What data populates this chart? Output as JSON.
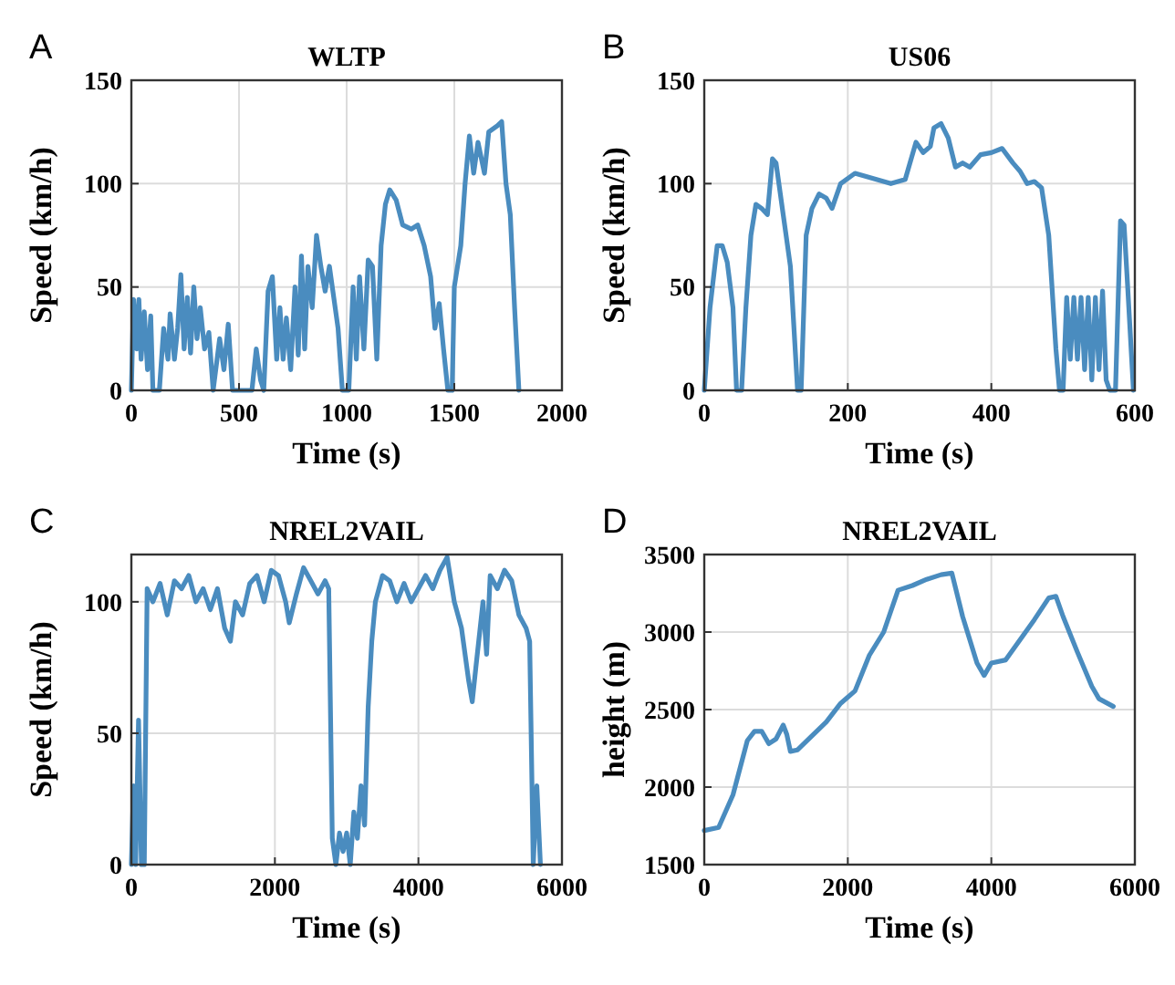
{
  "chart_data": [
    {
      "type": "line",
      "title": "WLTP",
      "xlabel": "Time (s)",
      "ylabel": "Speed (km/h)",
      "annotations": [
        "A"
      ],
      "xlim": [
        0,
        2000
      ],
      "xticks": [
        0,
        500,
        1000,
        1500,
        2000
      ],
      "ylim": [
        0,
        150
      ],
      "yticks": [
        0,
        50,
        100,
        150
      ],
      "grid": true,
      "line_style": "solid",
      "marker": "none",
      "series": [
        {
          "color": "#4a8cbf",
          "x": [
            0,
            10,
            25,
            35,
            45,
            60,
            75,
            90,
            100,
            130,
            150,
            170,
            180,
            200,
            215,
            230,
            245,
            260,
            275,
            290,
            305,
            320,
            340,
            360,
            380,
            410,
            430,
            450,
            470,
            500,
            560,
            580,
            600,
            615,
            635,
            655,
            675,
            690,
            705,
            720,
            740,
            760,
            775,
            790,
            805,
            820,
            840,
            860,
            880,
            900,
            920,
            940,
            960,
            980,
            1010,
            1030,
            1045,
            1060,
            1080,
            1100,
            1120,
            1140,
            1160,
            1180,
            1200,
            1230,
            1260,
            1300,
            1330,
            1360,
            1390,
            1410,
            1430,
            1450,
            1470,
            1490,
            1500,
            1530,
            1550,
            1570,
            1590,
            1610,
            1640,
            1660,
            1700,
            1720,
            1740,
            1760,
            1780,
            1800
          ],
          "values": [
            0,
            44,
            20,
            44,
            15,
            38,
            10,
            36,
            0,
            0,
            30,
            15,
            37,
            15,
            30,
            56,
            20,
            45,
            18,
            50,
            25,
            40,
            20,
            28,
            0,
            25,
            10,
            32,
            0,
            0,
            0,
            20,
            5,
            0,
            48,
            55,
            15,
            40,
            15,
            35,
            10,
            50,
            17,
            65,
            20,
            60,
            40,
            75,
            60,
            48,
            60,
            45,
            30,
            0,
            0,
            50,
            15,
            55,
            20,
            63,
            60,
            15,
            70,
            90,
            97,
            92,
            80,
            78,
            80,
            70,
            55,
            30,
            42,
            20,
            0,
            0,
            50,
            70,
            100,
            123,
            105,
            120,
            105,
            125,
            128,
            130,
            100,
            85,
            40,
            0
          ]
        }
      ]
    },
    {
      "type": "line",
      "title": "US06",
      "xlabel": "Time (s)",
      "ylabel": "Speed (km/h)",
      "annotations": [
        "B"
      ],
      "xlim": [
        0,
        600
      ],
      "xticks": [
        0,
        200,
        400,
        600
      ],
      "ylim": [
        0,
        150
      ],
      "yticks": [
        0,
        50,
        100,
        150
      ],
      "grid": true,
      "line_style": "solid",
      "marker": "none",
      "series": [
        {
          "color": "#4a8cbf",
          "x": [
            0,
            8,
            18,
            25,
            32,
            40,
            45,
            52,
            58,
            65,
            72,
            80,
            88,
            95,
            100,
            110,
            120,
            130,
            135,
            142,
            150,
            160,
            170,
            178,
            182,
            190,
            210,
            230,
            260,
            280,
            295,
            305,
            315,
            320,
            330,
            340,
            350,
            360,
            370,
            385,
            400,
            415,
            430,
            440,
            450,
            460,
            470,
            480,
            490,
            495,
            500,
            505,
            510,
            515,
            520,
            525,
            530,
            535,
            540,
            545,
            550,
            555,
            560,
            565,
            573,
            580,
            585,
            590,
            598
          ],
          "values": [
            0,
            40,
            70,
            70,
            62,
            40,
            0,
            0,
            40,
            75,
            90,
            88,
            85,
            112,
            110,
            85,
            60,
            0,
            0,
            75,
            88,
            95,
            93,
            88,
            92,
            100,
            105,
            103,
            100,
            102,
            120,
            115,
            118,
            127,
            129,
            122,
            108,
            110,
            108,
            114,
            115,
            117,
            110,
            106,
            100,
            101,
            98,
            75,
            20,
            0,
            0,
            45,
            15,
            45,
            15,
            45,
            10,
            45,
            5,
            45,
            10,
            48,
            5,
            0,
            0,
            82,
            80,
            50,
            0
          ]
        }
      ]
    },
    {
      "type": "line",
      "title": "NREL2VAIL",
      "xlabel": "Time (s)",
      "ylabel": "Speed (km/h)",
      "annotations": [
        "C"
      ],
      "xlim": [
        0,
        6000
      ],
      "xticks": [
        0,
        2000,
        4000,
        6000
      ],
      "ylim": [
        0,
        118
      ],
      "yticks": [
        0,
        50,
        100
      ],
      "grid": true,
      "line_style": "solid",
      "marker": "none",
      "series": [
        {
          "color": "#4a8cbf",
          "x": [
            0,
            30,
            60,
            100,
            140,
            180,
            220,
            300,
            400,
            500,
            600,
            700,
            800,
            900,
            1000,
            1100,
            1200,
            1300,
            1380,
            1450,
            1550,
            1650,
            1750,
            1850,
            1950,
            2050,
            2150,
            2200,
            2300,
            2400,
            2500,
            2600,
            2700,
            2750,
            2800,
            2850,
            2900,
            2950,
            3000,
            3050,
            3100,
            3150,
            3200,
            3250,
            3300,
            3350,
            3400,
            3500,
            3600,
            3700,
            3800,
            3900,
            4000,
            4100,
            4200,
            4300,
            4400,
            4500,
            4600,
            4700,
            4750,
            4800,
            4900,
            4950,
            5000,
            5100,
            5200,
            5300,
            5400,
            5500,
            5550,
            5600,
            5650,
            5700
          ],
          "values": [
            0,
            30,
            0,
            55,
            0,
            0,
            105,
            100,
            107,
            95,
            108,
            105,
            110,
            100,
            105,
            97,
            105,
            90,
            85,
            100,
            95,
            107,
            110,
            100,
            112,
            110,
            100,
            92,
            103,
            113,
            108,
            103,
            108,
            105,
            10,
            0,
            12,
            5,
            12,
            0,
            20,
            10,
            30,
            15,
            60,
            85,
            100,
            110,
            108,
            100,
            107,
            100,
            105,
            110,
            105,
            112,
            117,
            100,
            90,
            70,
            62,
            75,
            100,
            80,
            110,
            105,
            112,
            108,
            95,
            90,
            85,
            0,
            30,
            0
          ]
        }
      ]
    },
    {
      "type": "line",
      "title": "NREL2VAIL",
      "xlabel": "Time (s)",
      "ylabel": "height (m)",
      "annotations": [
        "D"
      ],
      "xlim": [
        0,
        6000
      ],
      "xticks": [
        0,
        2000,
        4000,
        6000
      ],
      "ylim": [
        1500,
        3500
      ],
      "yticks": [
        1500,
        2000,
        2500,
        3000,
        3500
      ],
      "grid": true,
      "line_style": "solid",
      "marker": "none",
      "series": [
        {
          "color": "#4a8cbf",
          "x": [
            0,
            200,
            400,
            600,
            700,
            800,
            900,
            1000,
            1100,
            1150,
            1200,
            1300,
            1500,
            1700,
            1900,
            2100,
            2300,
            2500,
            2700,
            2900,
            3100,
            3300,
            3450,
            3600,
            3800,
            3900,
            4000,
            4200,
            4400,
            4600,
            4800,
            4900,
            5000,
            5200,
            5400,
            5500,
            5700
          ],
          "values": [
            1720,
            1740,
            1950,
            2300,
            2360,
            2360,
            2280,
            2310,
            2400,
            2340,
            2230,
            2240,
            2330,
            2420,
            2540,
            2620,
            2850,
            3000,
            3270,
            3300,
            3340,
            3370,
            3380,
            3100,
            2800,
            2720,
            2800,
            2820,
            2950,
            3080,
            3220,
            3230,
            3100,
            2870,
            2650,
            2570,
            2520
          ]
        }
      ]
    }
  ]
}
